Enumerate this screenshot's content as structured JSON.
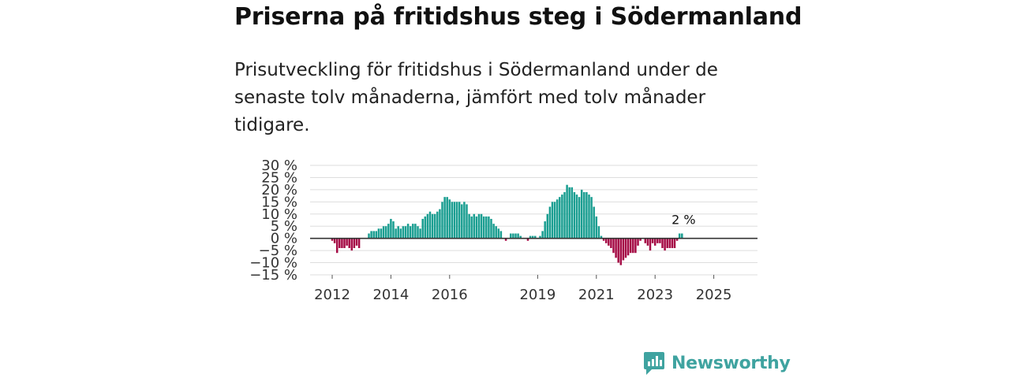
{
  "title": "Priserna på fritidshus steg i Södermanland",
  "subtitle": "Prisutveckling för fritidshus i Södermanland under de senaste tolv månaderna, jämfört med tolv månader tidigare.",
  "brand": "Newsworthy",
  "colors": {
    "positive": "#1a9e91",
    "negative": "#a50b45",
    "brand": "#3fa3a0"
  },
  "chart_data": {
    "type": "bar",
    "title": "Priserna på fritidshus steg i Södermanland",
    "ylabel": "",
    "xlabel": "",
    "ylim": [
      -15,
      30
    ],
    "y_ticks": [
      30,
      25,
      20,
      15,
      10,
      5,
      0,
      -5,
      -10,
      -15
    ],
    "y_tick_labels": [
      "30 %",
      "25 %",
      "20 %",
      "15 %",
      "10 %",
      "5 %",
      "0 %",
      "−5 %",
      "−10 %",
      "−15 %"
    ],
    "x_tick_labels": [
      {
        "label": "2012",
        "month_index": 0
      },
      {
        "label": "2014",
        "month_index": 24
      },
      {
        "label": "2016",
        "month_index": 48
      },
      {
        "label": "2019",
        "month_index": 84
      },
      {
        "label": "2021",
        "month_index": 108
      },
      {
        "label": "2023",
        "month_index": 132
      },
      {
        "label": "2025",
        "month_index": 156
      }
    ],
    "first_month": "2012-01",
    "annotation": {
      "label": "2 %",
      "value": 2
    },
    "values": [
      -1,
      -2,
      -6,
      -4,
      -4,
      -4,
      -3,
      -4,
      -5,
      -4,
      -3,
      -4,
      0,
      0,
      0,
      2,
      3,
      3,
      3,
      4,
      4,
      5,
      5,
      6,
      8,
      7,
      4,
      5,
      4,
      5,
      5,
      6,
      5,
      6,
      6,
      5,
      4,
      8,
      9,
      10,
      11,
      10,
      10,
      11,
      12,
      15,
      17,
      17,
      16,
      15,
      15,
      15,
      15,
      14,
      15,
      14,
      10,
      9,
      10,
      9,
      10,
      10,
      9,
      9,
      9,
      8,
      6,
      5,
      4,
      3,
      0,
      -1,
      0,
      2,
      2,
      2,
      2,
      1,
      0,
      0,
      -1,
      1,
      1,
      1,
      0,
      1,
      3,
      7,
      10,
      13,
      15,
      15,
      16,
      17,
      18,
      19,
      22,
      21,
      21,
      19,
      18,
      17,
      20,
      19,
      19,
      18,
      17,
      13,
      9,
      5,
      1,
      -1,
      -2,
      -3,
      -4,
      -6,
      -8,
      -10,
      -11,
      -9,
      -8,
      -7,
      -6,
      -6,
      -6,
      -3,
      -1,
      0,
      -2,
      -3,
      -5,
      -2,
      -3,
      -2,
      -2,
      -4,
      -5,
      -4,
      -4,
      -4,
      -4,
      -1,
      2,
      2
    ]
  }
}
